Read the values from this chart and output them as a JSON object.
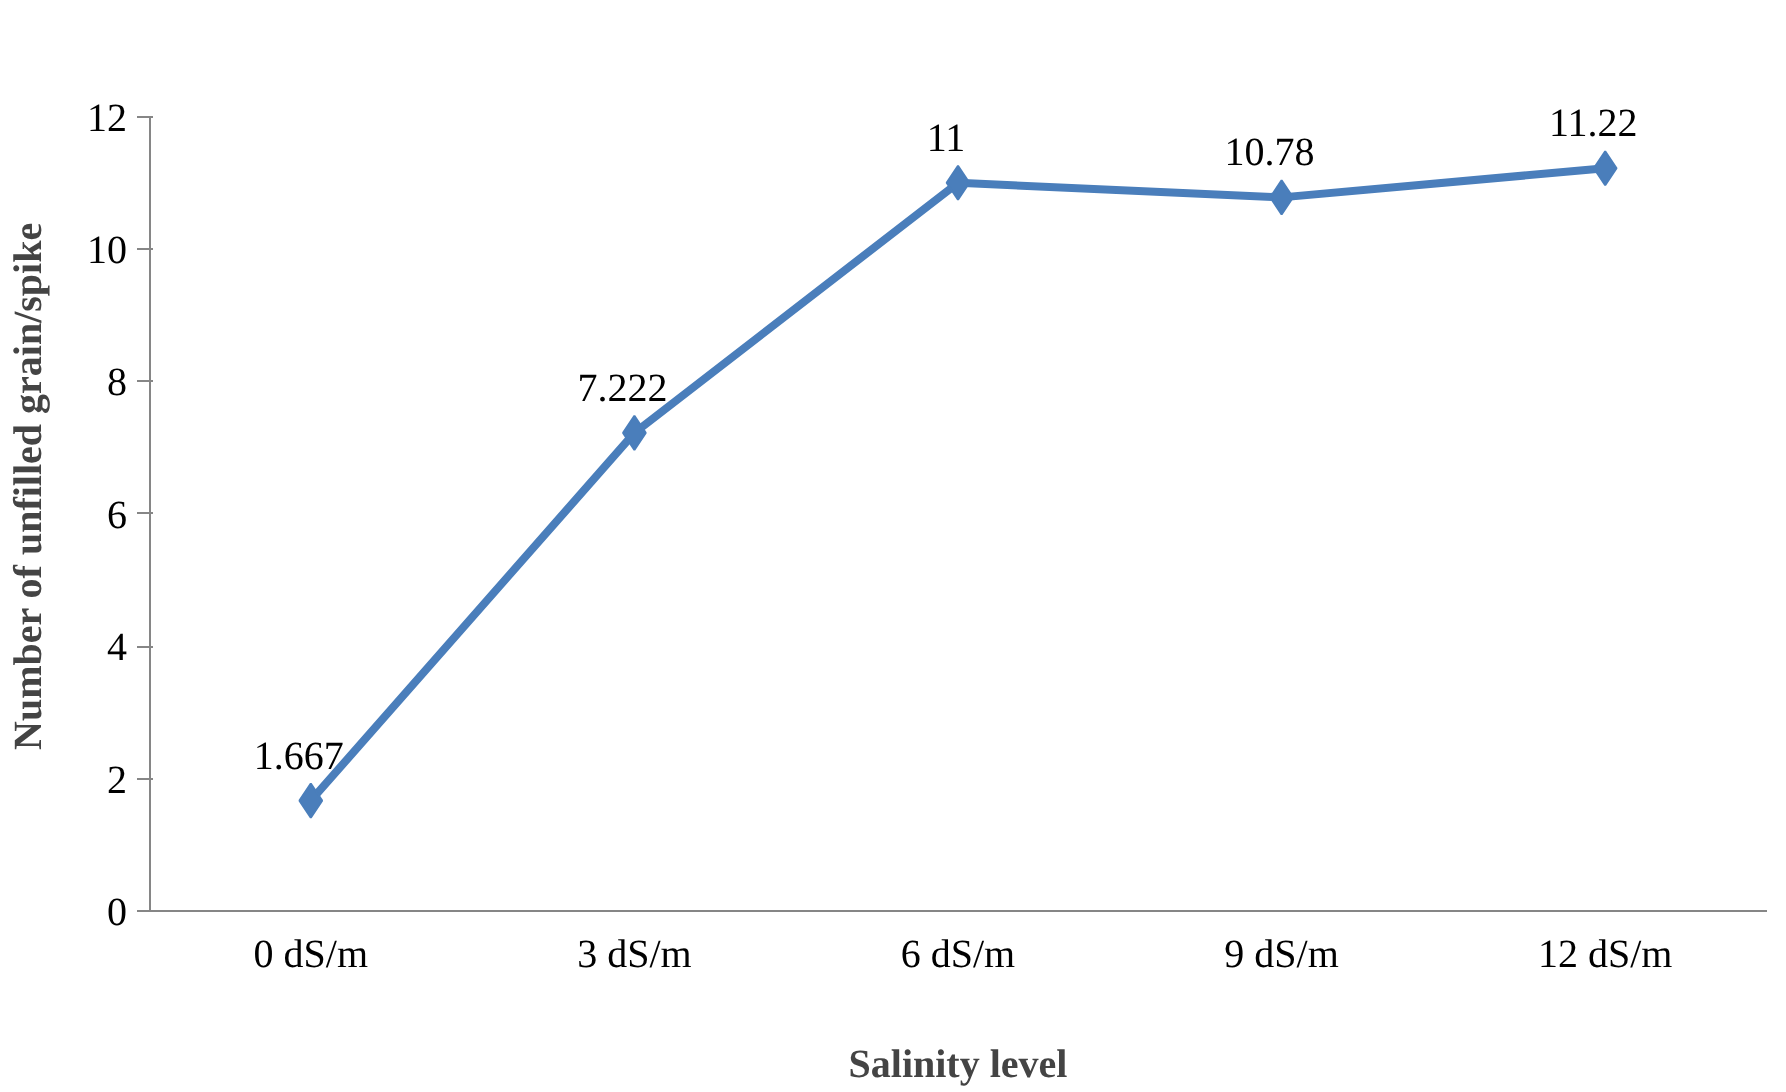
{
  "chart_data": {
    "type": "line",
    "xlabel": "Salinity level",
    "ylabel": "Number of unfilled grain/spike",
    "categories": [
      "0 dS/m",
      "3 dS/m",
      "6 dS/m",
      "9 dS/m",
      "12 dS/m"
    ],
    "series": [
      {
        "color": "#4a7ebb",
        "values": [
          1.667,
          7.222,
          11,
          10.78,
          11.22
        ]
      }
    ],
    "ylim": [
      0,
      12
    ],
    "yticks": [
      0,
      2,
      4,
      6,
      8,
      10,
      12
    ],
    "data_labels": true,
    "marker": "diamond",
    "line_style": "solid"
  }
}
